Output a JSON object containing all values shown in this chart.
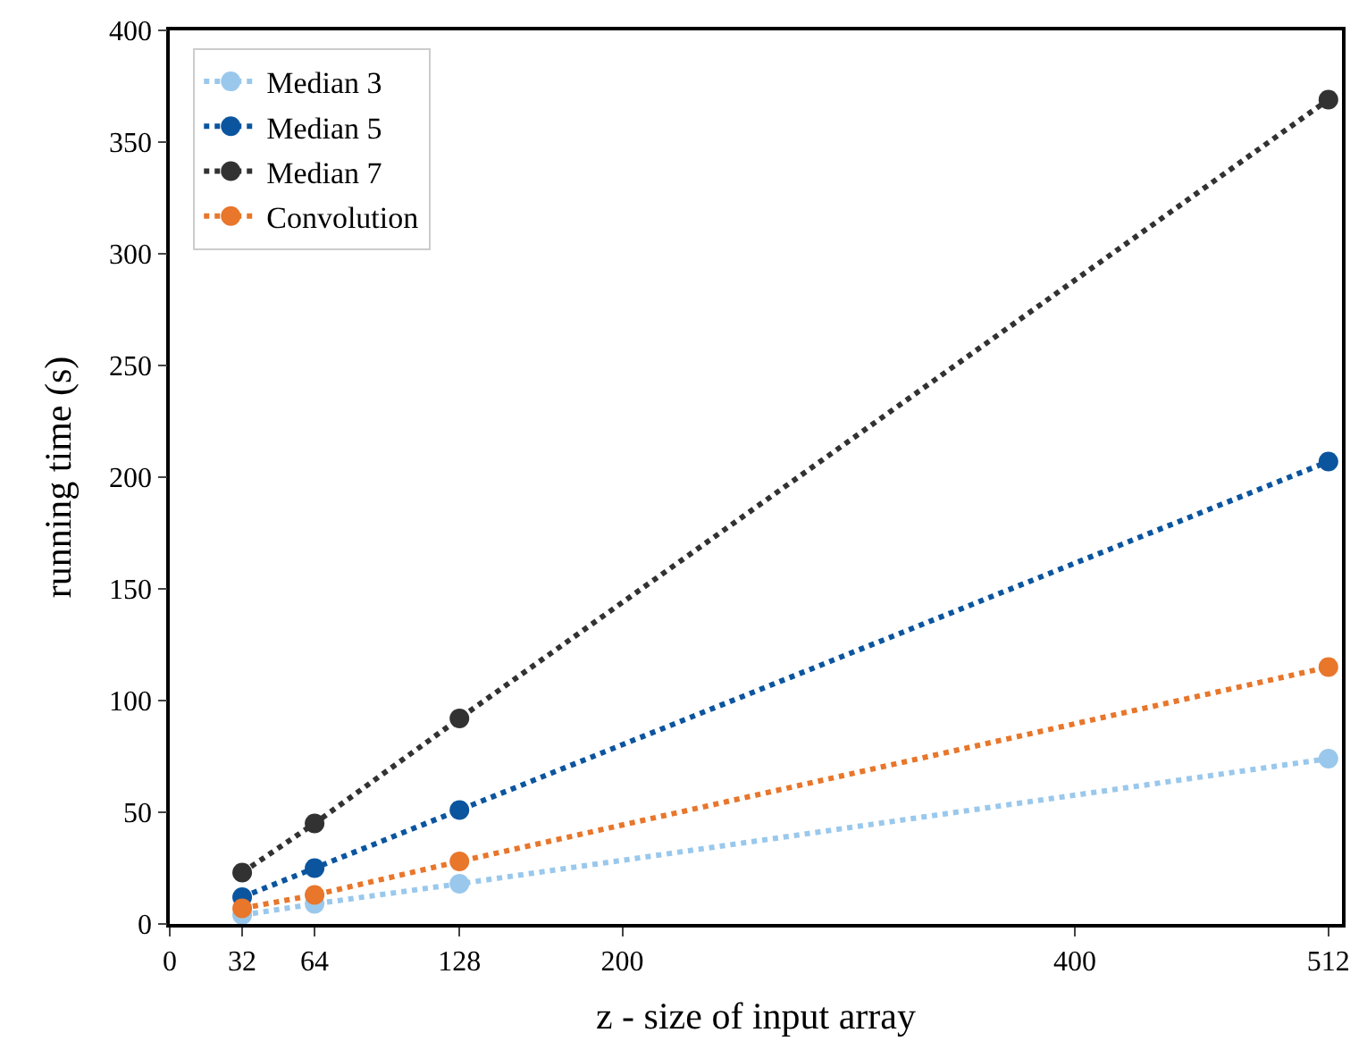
{
  "chart_data": {
    "type": "line",
    "xlabel": "z - size of input array",
    "ylabel": "running time (s)",
    "x": [
      32,
      64,
      128,
      512
    ],
    "series": [
      {
        "name": "Median 3",
        "color": "#9ac8ec",
        "values": [
          4,
          9,
          18,
          74
        ]
      },
      {
        "name": "Median 5",
        "color": "#0b559f",
        "values": [
          12,
          25,
          51,
          207
        ]
      },
      {
        "name": "Median 7",
        "color": "#323232",
        "values": [
          23,
          45,
          92,
          369
        ]
      },
      {
        "name": "Convolution",
        "color": "#e8762b",
        "values": [
          7,
          13,
          28,
          115
        ]
      }
    ],
    "xlim": [
      0,
      518
    ],
    "xticks": [
      0,
      32,
      64,
      128,
      200,
      400,
      512
    ],
    "ylim": [
      0,
      400
    ],
    "yticks": [
      0,
      50,
      100,
      150,
      200,
      250,
      300,
      350,
      400
    ],
    "legend": "top left",
    "marker": "circle",
    "line_style": "dotted"
  }
}
